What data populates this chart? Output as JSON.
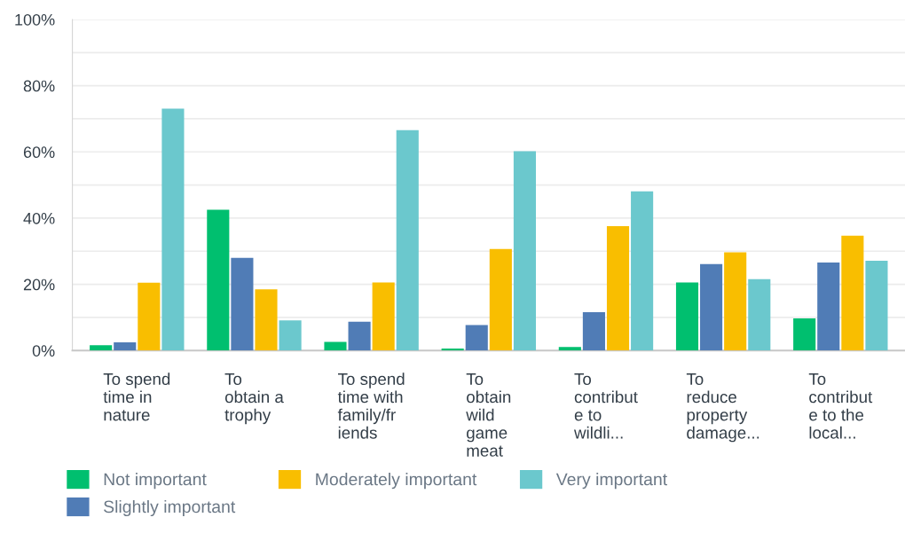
{
  "chart_data": {
    "type": "bar",
    "categories": [
      "To spend\ntime in\nnature",
      "To\nobtain a\ntrophy",
      "To spend\ntime with\nfamily/fr\niends",
      "To\nobtain\nwild\ngame\nmeat",
      "To\ncontribut\ne to\nwildli...",
      "To\nreduce\nproperty\ndamage...",
      "To\ncontribut\ne to the\nlocal..."
    ],
    "series": [
      {
        "name": "Not important",
        "color": "#00bf6f",
        "values": [
          1.6,
          42.5,
          2.6,
          0.6,
          1.1,
          20.6,
          9.7
        ]
      },
      {
        "name": "Slightly important",
        "color": "#507cb6",
        "values": [
          2.5,
          28.0,
          8.7,
          7.7,
          11.6,
          26.1,
          26.6
        ]
      },
      {
        "name": "Moderately important",
        "color": "#f9be00",
        "values": [
          20.5,
          18.5,
          20.6,
          30.7,
          37.6,
          29.7,
          34.7
        ]
      },
      {
        "name": "Very important",
        "color": "#6bc8cd",
        "values": [
          73.1,
          9.1,
          66.6,
          60.2,
          48.1,
          21.6,
          27.1
        ]
      }
    ],
    "ylim": [
      0,
      100
    ],
    "yticks": [
      {
        "value": 0,
        "label": "0%"
      },
      {
        "value": 10,
        "label": null
      },
      {
        "value": 20,
        "label": "20%"
      },
      {
        "value": 30,
        "label": null
      },
      {
        "value": 40,
        "label": "40%"
      },
      {
        "value": 50,
        "label": null
      },
      {
        "value": 60,
        "label": "60%"
      },
      {
        "value": 70,
        "label": null
      },
      {
        "value": 80,
        "label": "80%"
      },
      {
        "value": 90,
        "label": null
      },
      {
        "value": 100,
        "label": "100%"
      }
    ],
    "grid": "y",
    "legend": "bottom"
  }
}
